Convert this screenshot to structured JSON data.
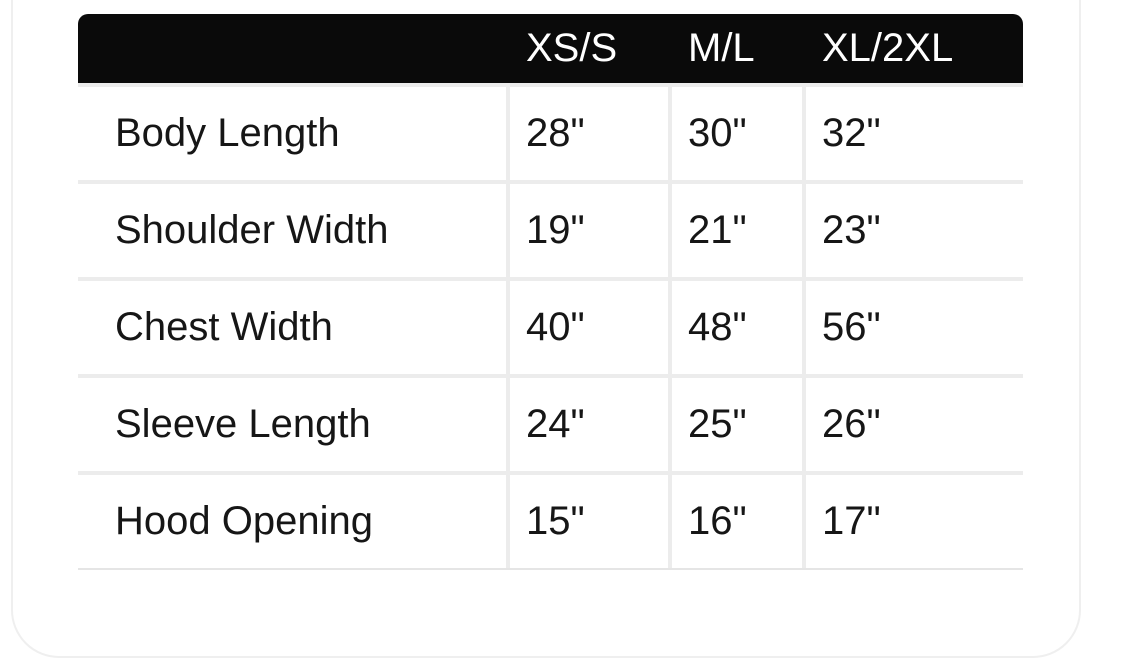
{
  "chart_data": {
    "type": "table",
    "column_headers": [
      "XS/S",
      "M/L",
      "XL/2XL"
    ],
    "rows": [
      {
        "label": "Body Length",
        "values": [
          "28\"",
          "30\"",
          "32\""
        ]
      },
      {
        "label": "Shoulder Width",
        "values": [
          "19\"",
          "21\"",
          "23\""
        ]
      },
      {
        "label": "Chest Width",
        "values": [
          "40\"",
          "48\"",
          "56\""
        ]
      },
      {
        "label": "Sleeve Length",
        "values": [
          "24\"",
          "25\"",
          "26\""
        ]
      },
      {
        "label": "Hood Opening",
        "values": [
          "15\"",
          "16\"",
          "17\""
        ]
      }
    ]
  },
  "colors": {
    "page_bg": "#ffffff",
    "card_border": "#efefef",
    "header_bg": "#0a0a0a",
    "header_text": "#ffffff",
    "cell_bg": "#ffffff",
    "grid_line": "#ececec",
    "body_text": "#161616"
  }
}
